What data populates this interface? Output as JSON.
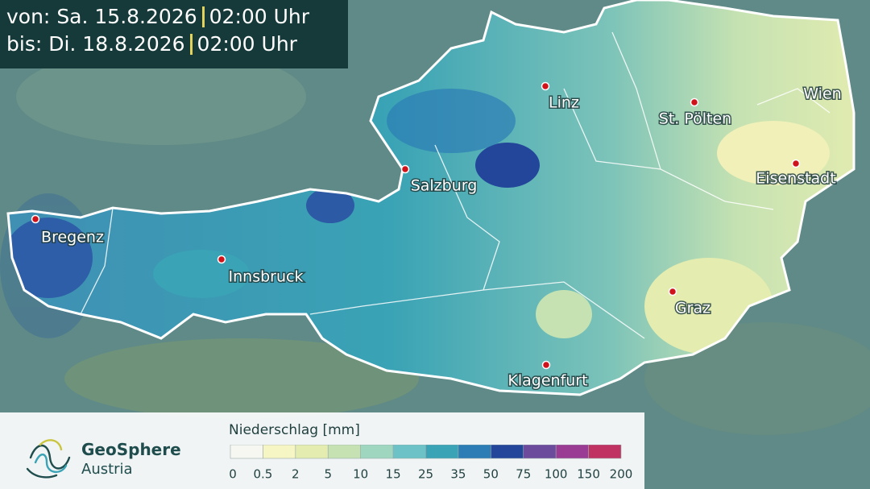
{
  "header": {
    "from": {
      "label": "von:",
      "date": "Sa. 15.8.2026",
      "time": "02:00 Uhr"
    },
    "to": {
      "label": "bis:",
      "date": "Di. 18.8.2026",
      "time": "02:00 Uhr"
    }
  },
  "cities": [
    "Linz",
    "St. Pölten",
    "Wien",
    "Eisenstadt",
    "Salzburg",
    "Bregenz",
    "Innsbruck",
    "Graz",
    "Klagenfurt"
  ],
  "brand": {
    "name": "GeoSphere",
    "sub": "Austria"
  },
  "legend": {
    "title": "Niederschlag [mm]",
    "ticks": [
      "0",
      "0.5",
      "2",
      "5",
      "10",
      "15",
      "25",
      "35",
      "50",
      "75",
      "100",
      "150",
      "200"
    ],
    "colors": [
      "#f7f7f2",
      "#f6f5c4",
      "#e4ecb0",
      "#c6e2b2",
      "#9fd6c0",
      "#6cc2c6",
      "#3aa3b5",
      "#2c7db5",
      "#23469a",
      "#6c4a9c",
      "#9a3c93",
      "#bf3262",
      "#e8695a"
    ]
  }
}
